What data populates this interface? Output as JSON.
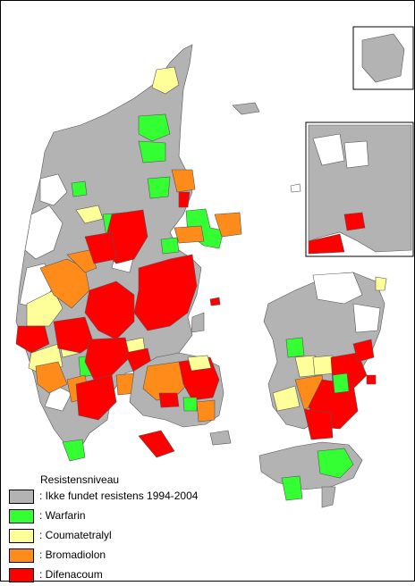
{
  "legend": {
    "title": "Resistensniveau",
    "items": [
      {
        "label": ": Ikke fundet resistens 1994-2004",
        "color": "#b3b3b3"
      },
      {
        "label": ": Warfarin",
        "color": "#33ff33"
      },
      {
        "label": ": Coumatetralyl",
        "color": "#ffff99"
      },
      {
        "label": ": Bromadiolon",
        "color": "#ff8c1a"
      },
      {
        "label": ": Difenacoum",
        "color": "#ff0000"
      }
    ]
  },
  "colors": {
    "none": "#b3b3b3",
    "warfarin": "#33ff33",
    "coumatetralyl": "#ffff99",
    "bromadiolon": "#ff8c1a",
    "difenacoum": "#ff0000",
    "white": "#ffffff",
    "border": "#000000"
  }
}
